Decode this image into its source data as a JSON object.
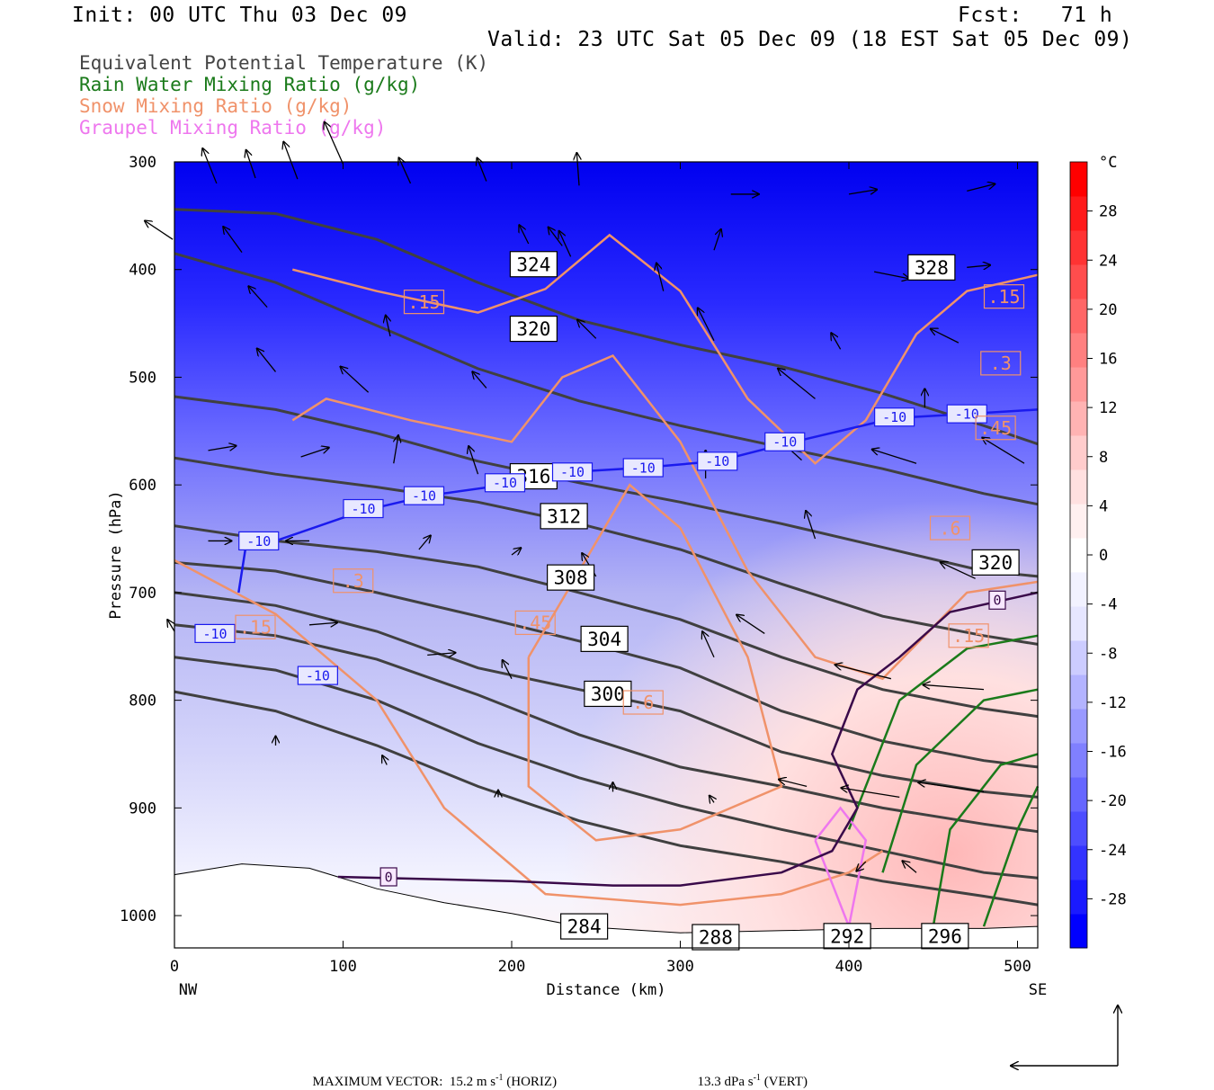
{
  "header": {
    "init": "Init: 00 UTC Thu 03 Dec 09",
    "fcst": "Fcst:   71 h",
    "valid": "Valid: 23 UTC Sat 05 Dec 09 (18 EST Sat 05 Dec 09)"
  },
  "legend": [
    {
      "text": "Equivalent Potential Temperature (K)",
      "color": "#444444"
    },
    {
      "text": "Rain Water Mixing Ratio (g/kg)",
      "color": "#1a7a1a"
    },
    {
      "text": "Snow Mixing Ratio (g/kg)",
      "color": "#f0926a"
    },
    {
      "text": "Graupel Mixing Ratio (g/kg)",
      "color": "#ee77ee"
    }
  ],
  "footer": {
    "max_vector_label": "MAXIMUM VECTOR:",
    "horiz_value": "15.2 m s",
    "horiz_exp": "-1",
    "horiz_tag": "(HORIZ)",
    "vert_value": "13.3 dPa s",
    "vert_exp": "-1",
    "vert_tag": "(VERT)"
  },
  "chart_data": {
    "type": "contour cross-section",
    "xlabel": "Distance (km)",
    "ylabel": "Pressure (hPa)",
    "x_ticks": [
      0,
      100,
      200,
      300,
      400,
      500
    ],
    "xlim": [
      0,
      512
    ],
    "x_end_labels": {
      "left": "NW",
      "right": "SE"
    },
    "y_ticks": [
      300,
      400,
      500,
      600,
      700,
      800,
      900,
      1000
    ],
    "ylim": [
      1030,
      300
    ],
    "colorbar": {
      "unit": "°C",
      "labels": [
        28,
        24,
        20,
        16,
        12,
        8,
        4,
        0,
        -4,
        -8,
        -12,
        -16,
        -20,
        -24,
        -28
      ],
      "range": [
        -32,
        32
      ],
      "colors": [
        "#0000ff",
        "#1a1aff",
        "#3333ff",
        "#4d4dff",
        "#6666ff",
        "#8080ff",
        "#9999ff",
        "#b3b3ff",
        "#ccccff",
        "#e6e6ff",
        "#f2f2ff",
        "#ffffff",
        "#fff0f0",
        "#ffe0e0",
        "#ffcccc",
        "#ffb3b3",
        "#ff9999",
        "#ff8080",
        "#ff6666",
        "#ff4d4d",
        "#ff3333",
        "#ff1a1a",
        "#ff0000"
      ]
    },
    "temperature_labels": [
      {
        "text": "-10",
        "x": 50,
        "p": 652
      },
      {
        "text": "-10",
        "x": 112,
        "p": 622
      },
      {
        "text": "-10",
        "x": 148,
        "p": 610
      },
      {
        "text": "-10",
        "x": 196,
        "p": 598
      },
      {
        "text": "-10",
        "x": 236,
        "p": 588
      },
      {
        "text": "-10",
        "x": 278,
        "p": 584
      },
      {
        "text": "-10",
        "x": 322,
        "p": 578
      },
      {
        "text": "-10",
        "x": 362,
        "p": 560
      },
      {
        "text": "-10",
        "x": 427,
        "p": 537
      },
      {
        "text": "-10",
        "x": 470,
        "p": 534
      },
      {
        "text": "-10",
        "x": 24,
        "p": 738
      },
      {
        "text": "-10",
        "x": 85,
        "p": 777
      },
      {
        "text": "0",
        "x": 127,
        "p": 964
      },
      {
        "text": "0",
        "x": 488,
        "p": 707
      }
    ],
    "theta_e_labels": [
      {
        "text": "324",
        "x": 213,
        "p": 395
      },
      {
        "text": "328",
        "x": 449,
        "p": 398
      },
      {
        "text": "320",
        "x": 213,
        "p": 455
      },
      {
        "text": "316",
        "x": 213,
        "p": 592
      },
      {
        "text": "312",
        "x": 231,
        "p": 629
      },
      {
        "text": "320",
        "x": 487,
        "p": 672
      },
      {
        "text": "308",
        "x": 235,
        "p": 686
      },
      {
        "text": "304",
        "x": 255,
        "p": 743
      },
      {
        "text": "300",
        "x": 257,
        "p": 794
      },
      {
        "text": "284",
        "x": 243,
        "p": 1010
      },
      {
        "text": "288",
        "x": 321,
        "p": 1020
      },
      {
        "text": "292",
        "x": 399,
        "p": 1019
      },
      {
        "text": "296",
        "x": 457,
        "p": 1019
      }
    ],
    "snow_labels": [
      {
        "text": ".15",
        "x": 148,
        "p": 430
      },
      {
        "text": ".15",
        "x": 492,
        "p": 425
      },
      {
        "text": ".3",
        "x": 490,
        "p": 487
      },
      {
        "text": ".45",
        "x": 487,
        "p": 547
      },
      {
        "text": ".6",
        "x": 460,
        "p": 640
      },
      {
        "text": ".3",
        "x": 106,
        "p": 689
      },
      {
        "text": ".45",
        "x": 214,
        "p": 728
      },
      {
        "text": ".6",
        "x": 278,
        "p": 802
      },
      {
        "text": ".15",
        "x": 48,
        "p": 732
      },
      {
        "text": ".15",
        "x": 471,
        "p": 740
      }
    ],
    "theta_e_lines": [
      [
        [
          0,
          344
        ],
        [
          60,
          348
        ],
        [
          120,
          372
        ],
        [
          180,
          412
        ],
        [
          240,
          447
        ],
        [
          300,
          470
        ],
        [
          360,
          490
        ],
        [
          420,
          515
        ],
        [
          480,
          545
        ],
        [
          512,
          562
        ]
      ],
      [
        [
          0,
          385
        ],
        [
          60,
          412
        ],
        [
          120,
          452
        ],
        [
          180,
          492
        ],
        [
          240,
          522
        ],
        [
          300,
          545
        ],
        [
          360,
          565
        ],
        [
          420,
          585
        ],
        [
          480,
          608
        ],
        [
          512,
          618
        ]
      ],
      [
        [
          0,
          518
        ],
        [
          60,
          530
        ],
        [
          120,
          552
        ],
        [
          180,
          578
        ],
        [
          240,
          598
        ],
        [
          300,
          616
        ],
        [
          360,
          636
        ],
        [
          420,
          658
        ],
        [
          480,
          680
        ],
        [
          512,
          685
        ]
      ],
      [
        [
          0,
          575
        ],
        [
          60,
          590
        ],
        [
          120,
          602
        ],
        [
          180,
          616
        ],
        [
          240,
          636
        ],
        [
          300,
          660
        ],
        [
          360,
          692
        ],
        [
          420,
          722
        ],
        [
          480,
          740
        ],
        [
          512,
          748
        ]
      ],
      [
        [
          0,
          638
        ],
        [
          60,
          652
        ],
        [
          120,
          662
        ],
        [
          180,
          676
        ],
        [
          240,
          700
        ],
        [
          300,
          725
        ],
        [
          360,
          760
        ],
        [
          420,
          790
        ],
        [
          480,
          808
        ],
        [
          512,
          815
        ]
      ],
      [
        [
          0,
          672
        ],
        [
          60,
          680
        ],
        [
          120,
          700
        ],
        [
          180,
          722
        ],
        [
          240,
          745
        ],
        [
          300,
          770
        ],
        [
          360,
          810
        ],
        [
          420,
          838
        ],
        [
          480,
          856
        ],
        [
          512,
          862
        ]
      ],
      [
        [
          0,
          700
        ],
        [
          60,
          712
        ],
        [
          120,
          736
        ],
        [
          180,
          770
        ],
        [
          240,
          790
        ],
        [
          300,
          810
        ],
        [
          360,
          848
        ],
        [
          420,
          870
        ],
        [
          480,
          885
        ],
        [
          512,
          890
        ]
      ],
      [
        [
          0,
          730
        ],
        [
          60,
          740
        ],
        [
          120,
          762
        ],
        [
          180,
          795
        ],
        [
          240,
          832
        ],
        [
          300,
          862
        ],
        [
          360,
          880
        ],
        [
          420,
          900
        ],
        [
          480,
          915
        ],
        [
          512,
          922
        ]
      ],
      [
        [
          0,
          760
        ],
        [
          60,
          772
        ],
        [
          120,
          800
        ],
        [
          180,
          840
        ],
        [
          240,
          872
        ],
        [
          300,
          898
        ],
        [
          360,
          920
        ],
        [
          420,
          940
        ],
        [
          480,
          960
        ],
        [
          512,
          965
        ]
      ],
      [
        [
          0,
          792
        ],
        [
          60,
          810
        ],
        [
          120,
          842
        ],
        [
          180,
          880
        ],
        [
          240,
          912
        ],
        [
          300,
          935
        ],
        [
          360,
          950
        ],
        [
          420,
          968
        ],
        [
          480,
          982
        ],
        [
          512,
          990
        ]
      ]
    ],
    "snow_lines": [
      [
        [
          70,
          400
        ],
        [
          120,
          420
        ],
        [
          180,
          440
        ],
        [
          220,
          418
        ],
        [
          258,
          368
        ],
        [
          300,
          420
        ],
        [
          340,
          520
        ],
        [
          380,
          580
        ],
        [
          410,
          540
        ],
        [
          440,
          460
        ],
        [
          470,
          420
        ],
        [
          512,
          405
        ]
      ],
      [
        [
          70,
          540
        ],
        [
          90,
          520
        ],
        [
          140,
          540
        ],
        [
          200,
          560
        ],
        [
          230,
          500
        ],
        [
          260,
          480
        ],
        [
          300,
          560
        ],
        [
          340,
          680
        ],
        [
          380,
          760
        ],
        [
          420,
          780
        ],
        [
          470,
          700
        ],
        [
          512,
          690
        ]
      ],
      [
        [
          0,
          670
        ],
        [
          60,
          720
        ],
        [
          120,
          800
        ],
        [
          160,
          900
        ],
        [
          220,
          980
        ],
        [
          300,
          990
        ],
        [
          360,
          980
        ],
        [
          400,
          960
        ],
        [
          420,
          940
        ]
      ],
      [
        [
          210,
          760
        ],
        [
          240,
          680
        ],
        [
          270,
          600
        ],
        [
          300,
          640
        ],
        [
          340,
          760
        ],
        [
          360,
          880
        ],
        [
          300,
          920
        ],
        [
          250,
          930
        ],
        [
          210,
          880
        ],
        [
          210,
          760
        ]
      ]
    ],
    "rain_lines": [
      [
        [
          400,
          920
        ],
        [
          430,
          800
        ],
        [
          470,
          752
        ],
        [
          512,
          740
        ]
      ],
      [
        [
          420,
          960
        ],
        [
          440,
          860
        ],
        [
          480,
          800
        ],
        [
          512,
          790
        ]
      ],
      [
        [
          450,
          1010
        ],
        [
          460,
          920
        ],
        [
          490,
          860
        ],
        [
          512,
          850
        ]
      ],
      [
        [
          480,
          1010
        ],
        [
          500,
          920
        ],
        [
          512,
          880
        ]
      ]
    ],
    "graupel_lines": [
      [
        [
          380,
          930
        ],
        [
          395,
          900
        ],
        [
          410,
          930
        ],
        [
          400,
          1010
        ],
        [
          390,
          970
        ],
        [
          380,
          930
        ]
      ]
    ],
    "zero_line": [
      [
        97,
        964
      ],
      [
        200,
        968
      ],
      [
        260,
        972
      ],
      [
        300,
        972
      ],
      [
        360,
        960
      ],
      [
        390,
        940
      ],
      [
        405,
        900
      ],
      [
        390,
        850
      ],
      [
        405,
        790
      ],
      [
        430,
        760
      ],
      [
        460,
        718
      ],
      [
        512,
        700
      ]
    ],
    "minus10_line": [
      [
        38,
        700
      ],
      [
        42,
        660
      ],
      [
        60,
        652
      ],
      [
        112,
        624
      ],
      [
        150,
        610
      ],
      [
        196,
        600
      ],
      [
        236,
        588
      ],
      [
        278,
        584
      ],
      [
        322,
        578
      ],
      [
        362,
        562
      ],
      [
        400,
        548
      ],
      [
        427,
        538
      ],
      [
        470,
        534
      ],
      [
        512,
        530
      ]
    ]
  },
  "vectors": {
    "scale_note": "max vector",
    "corner_arrow": "reference"
  }
}
